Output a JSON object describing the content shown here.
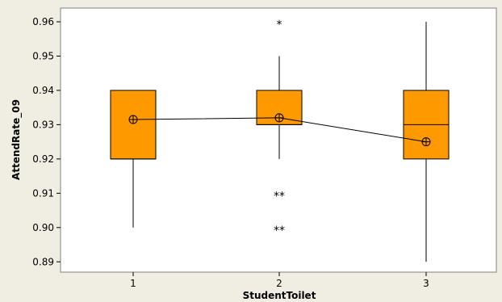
{
  "chart_data": {
    "type": "boxplot",
    "xlabel": "StudentToilet",
    "ylabel": "AttendRate_09",
    "ylim": [
      0.887,
      0.964
    ],
    "yticks": [
      "0.96",
      "0.95",
      "0.94",
      "0.93",
      "0.92",
      "0.91",
      "0.90",
      "0.89"
    ],
    "ytick_values": [
      0.96,
      0.95,
      0.94,
      0.93,
      0.92,
      0.91,
      0.9,
      0.89
    ],
    "categories": [
      "1",
      "2",
      "3"
    ],
    "boxes": [
      {
        "category": "1",
        "whisker_low": 0.9,
        "q1": 0.92,
        "median": 0.92,
        "q3": 0.94,
        "whisker_high": 0.94,
        "mean": 0.9315,
        "outliers": []
      },
      {
        "category": "2",
        "whisker_low": 0.92,
        "q1": 0.93,
        "median": 0.93,
        "q3": 0.94,
        "whisker_high": 0.95,
        "mean": 0.932,
        "outliers": [
          0.96,
          0.91,
          0.9
        ]
      },
      {
        "category": "3",
        "whisker_low": 0.89,
        "q1": 0.92,
        "median": 0.93,
        "q3": 0.94,
        "whisker_high": 0.96,
        "mean": 0.925,
        "outliers": []
      }
    ],
    "outlier_labels": [
      "*",
      "**",
      "**"
    ],
    "mean_connect_line": true,
    "box_color": "#ff9900",
    "background_color": "#f0ede2",
    "plot_background": "#ffffff",
    "grid": false
  }
}
